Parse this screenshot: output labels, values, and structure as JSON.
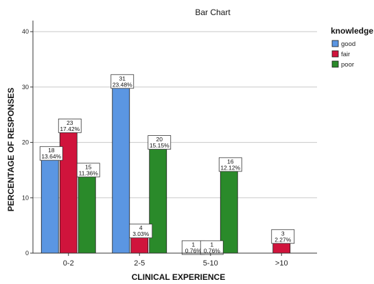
{
  "chart_data": {
    "type": "bar",
    "title": "Bar Chart",
    "xlabel": "CLINICAL EXPERIENCE",
    "ylabel": "PERCENTAGE OF RESPONSES",
    "ylim": [
      0,
      42
    ],
    "yticks": [
      0,
      10,
      20,
      30,
      40
    ],
    "grid": true,
    "legend_placement": "right",
    "legend_title": "knowledge",
    "categories": [
      "0-2",
      "2-5",
      "5-10",
      ">10"
    ],
    "series": [
      {
        "name": "good",
        "color": "#5b96e2",
        "values": [
          18,
          31,
          1,
          null
        ],
        "percent_labels": [
          "13.64%",
          "23.48%",
          "0.76%",
          null
        ]
      },
      {
        "name": "fair",
        "color": "#d0143c",
        "values": [
          23,
          4,
          1,
          3
        ],
        "percent_labels": [
          "17.42%",
          "3.03%",
          "0.76%",
          "2.27%"
        ]
      },
      {
        "name": "poor",
        "color": "#2a8a2a",
        "values": [
          15,
          20,
          16,
          null
        ],
        "percent_labels": [
          "11.36%",
          "15.15%",
          "12.12%",
          null
        ]
      }
    ]
  }
}
